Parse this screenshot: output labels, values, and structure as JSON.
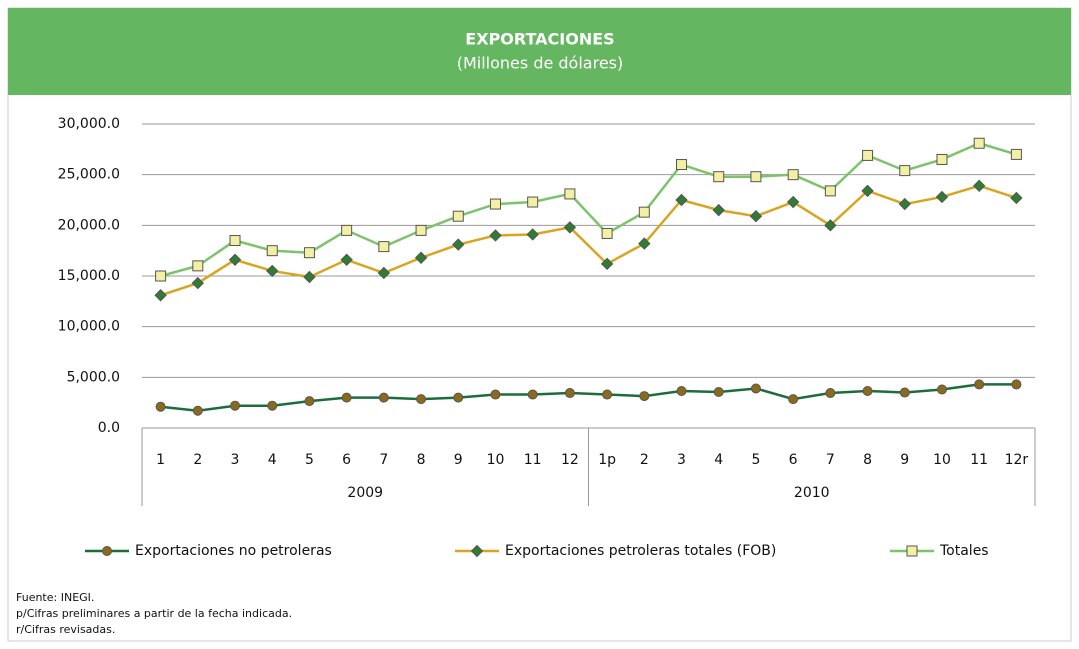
{
  "chart_data": {
    "type": "line",
    "title": "EXPORTACIONES",
    "subtitle": "(Millones de dólares)",
    "categories": [
      "1",
      "2",
      "3",
      "4",
      "5",
      "6",
      "7",
      "8",
      "9",
      "10",
      "11",
      "12",
      "1p",
      "2",
      "3",
      "4",
      "5",
      "6",
      "7",
      "8",
      "9",
      "10",
      "11",
      "12r"
    ],
    "groups": [
      "2009",
      "2010"
    ],
    "series": [
      {
        "name": "Exportaciones no petroleras",
        "color": "#1b6e3c",
        "marker": "circle",
        "marker_color": "#8c6a1c",
        "values": [
          2100,
          1700,
          2200,
          2200,
          2650,
          3000,
          3000,
          2850,
          3000,
          3300,
          3300,
          3450,
          3300,
          3150,
          3650,
          3550,
          3900,
          2850,
          3450,
          3650,
          3500,
          3800,
          4300,
          4300
        ]
      },
      {
        "name": "Exportaciones petroleras totales (FOB)",
        "color": "#d9a520",
        "marker": "diamond",
        "marker_color": "#2e7d32",
        "values": [
          13100,
          14300,
          16600,
          15500,
          14900,
          16600,
          15300,
          16800,
          18100,
          19000,
          19100,
          19800,
          16200,
          18200,
          22500,
          21500,
          20900,
          22300,
          20000,
          23400,
          22100,
          22800,
          23900,
          22700
        ]
      },
      {
        "name": "Totales",
        "color": "#7cc46c",
        "marker": "square",
        "marker_color": "#f3f0a4",
        "values": [
          15000,
          16000,
          18500,
          17500,
          17300,
          19500,
          17900,
          19500,
          20900,
          22100,
          22300,
          23100,
          19200,
          21300,
          26000,
          24800,
          24800,
          25000,
          23400,
          26900,
          25400,
          26500,
          28100,
          27000
        ]
      }
    ],
    "ylim": [
      0,
      30000
    ],
    "yticks": [
      {
        "value": 0,
        "label": "0.0"
      },
      {
        "value": 5000,
        "label": "5,000.0"
      },
      {
        "value": 10000,
        "label": "10,000.0"
      },
      {
        "value": 15000,
        "label": "15,000.0"
      },
      {
        "value": 20000,
        "label": "20,000.0"
      },
      {
        "value": 25000,
        "label": "25,000.0"
      },
      {
        "value": 30000,
        "label": "30,000.0"
      }
    ],
    "grid": true,
    "notes": [
      "Fuente: INEGI.",
      "p/Cifras preliminares a partir de la fecha indicada.",
      "r/Cifras revisadas."
    ]
  }
}
